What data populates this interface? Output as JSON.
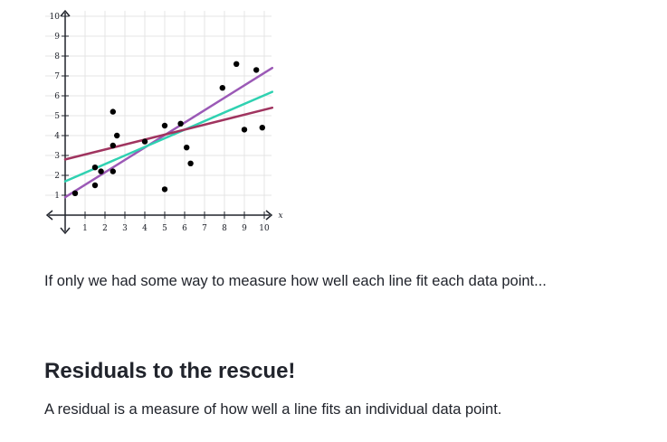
{
  "figure": {
    "x_tick_labels": [
      "1",
      "2",
      "3",
      "4",
      "5",
      "6",
      "7",
      "8",
      "9",
      "10"
    ],
    "y_tick_labels": [
      "1",
      "2",
      "3",
      "4",
      "5",
      "6",
      "7",
      "8",
      "9",
      "10"
    ],
    "x_axis_symbol": "x",
    "points": [
      [
        0.5,
        1.1
      ],
      [
        1.5,
        2.4
      ],
      [
        1.5,
        1.5
      ],
      [
        1.8,
        2.2
      ],
      [
        2.4,
        5.2
      ],
      [
        2.4,
        3.5
      ],
      [
        2.4,
        2.2
      ],
      [
        2.6,
        4.0
      ],
      [
        4.0,
        3.7
      ],
      [
        5.0,
        4.5
      ],
      [
        5.0,
        1.3
      ],
      [
        5.8,
        4.6
      ],
      [
        6.1,
        3.4
      ],
      [
        6.3,
        2.6
      ],
      [
        7.9,
        6.4
      ],
      [
        8.6,
        7.6
      ],
      [
        9.0,
        4.3
      ],
      [
        9.6,
        7.3
      ],
      [
        9.9,
        4.4
      ]
    ],
    "lines": [
      {
        "color": "#9b59b6",
        "from": [
          0,
          0.9
        ],
        "to": [
          10.4,
          7.4
        ]
      },
      {
        "color": "#2fd1b1",
        "from": [
          0,
          1.7
        ],
        "to": [
          10.4,
          6.2
        ]
      },
      {
        "color": "#a0345f",
        "from": [
          0,
          2.8
        ],
        "to": [
          10.4,
          5.4
        ]
      }
    ]
  },
  "caption": "If only we had some way to measure how well each line fit each data point...",
  "heading": "Residuals to the rescue!",
  "paragraph": "A residual is a measure of how well a line fits an individual data point."
}
